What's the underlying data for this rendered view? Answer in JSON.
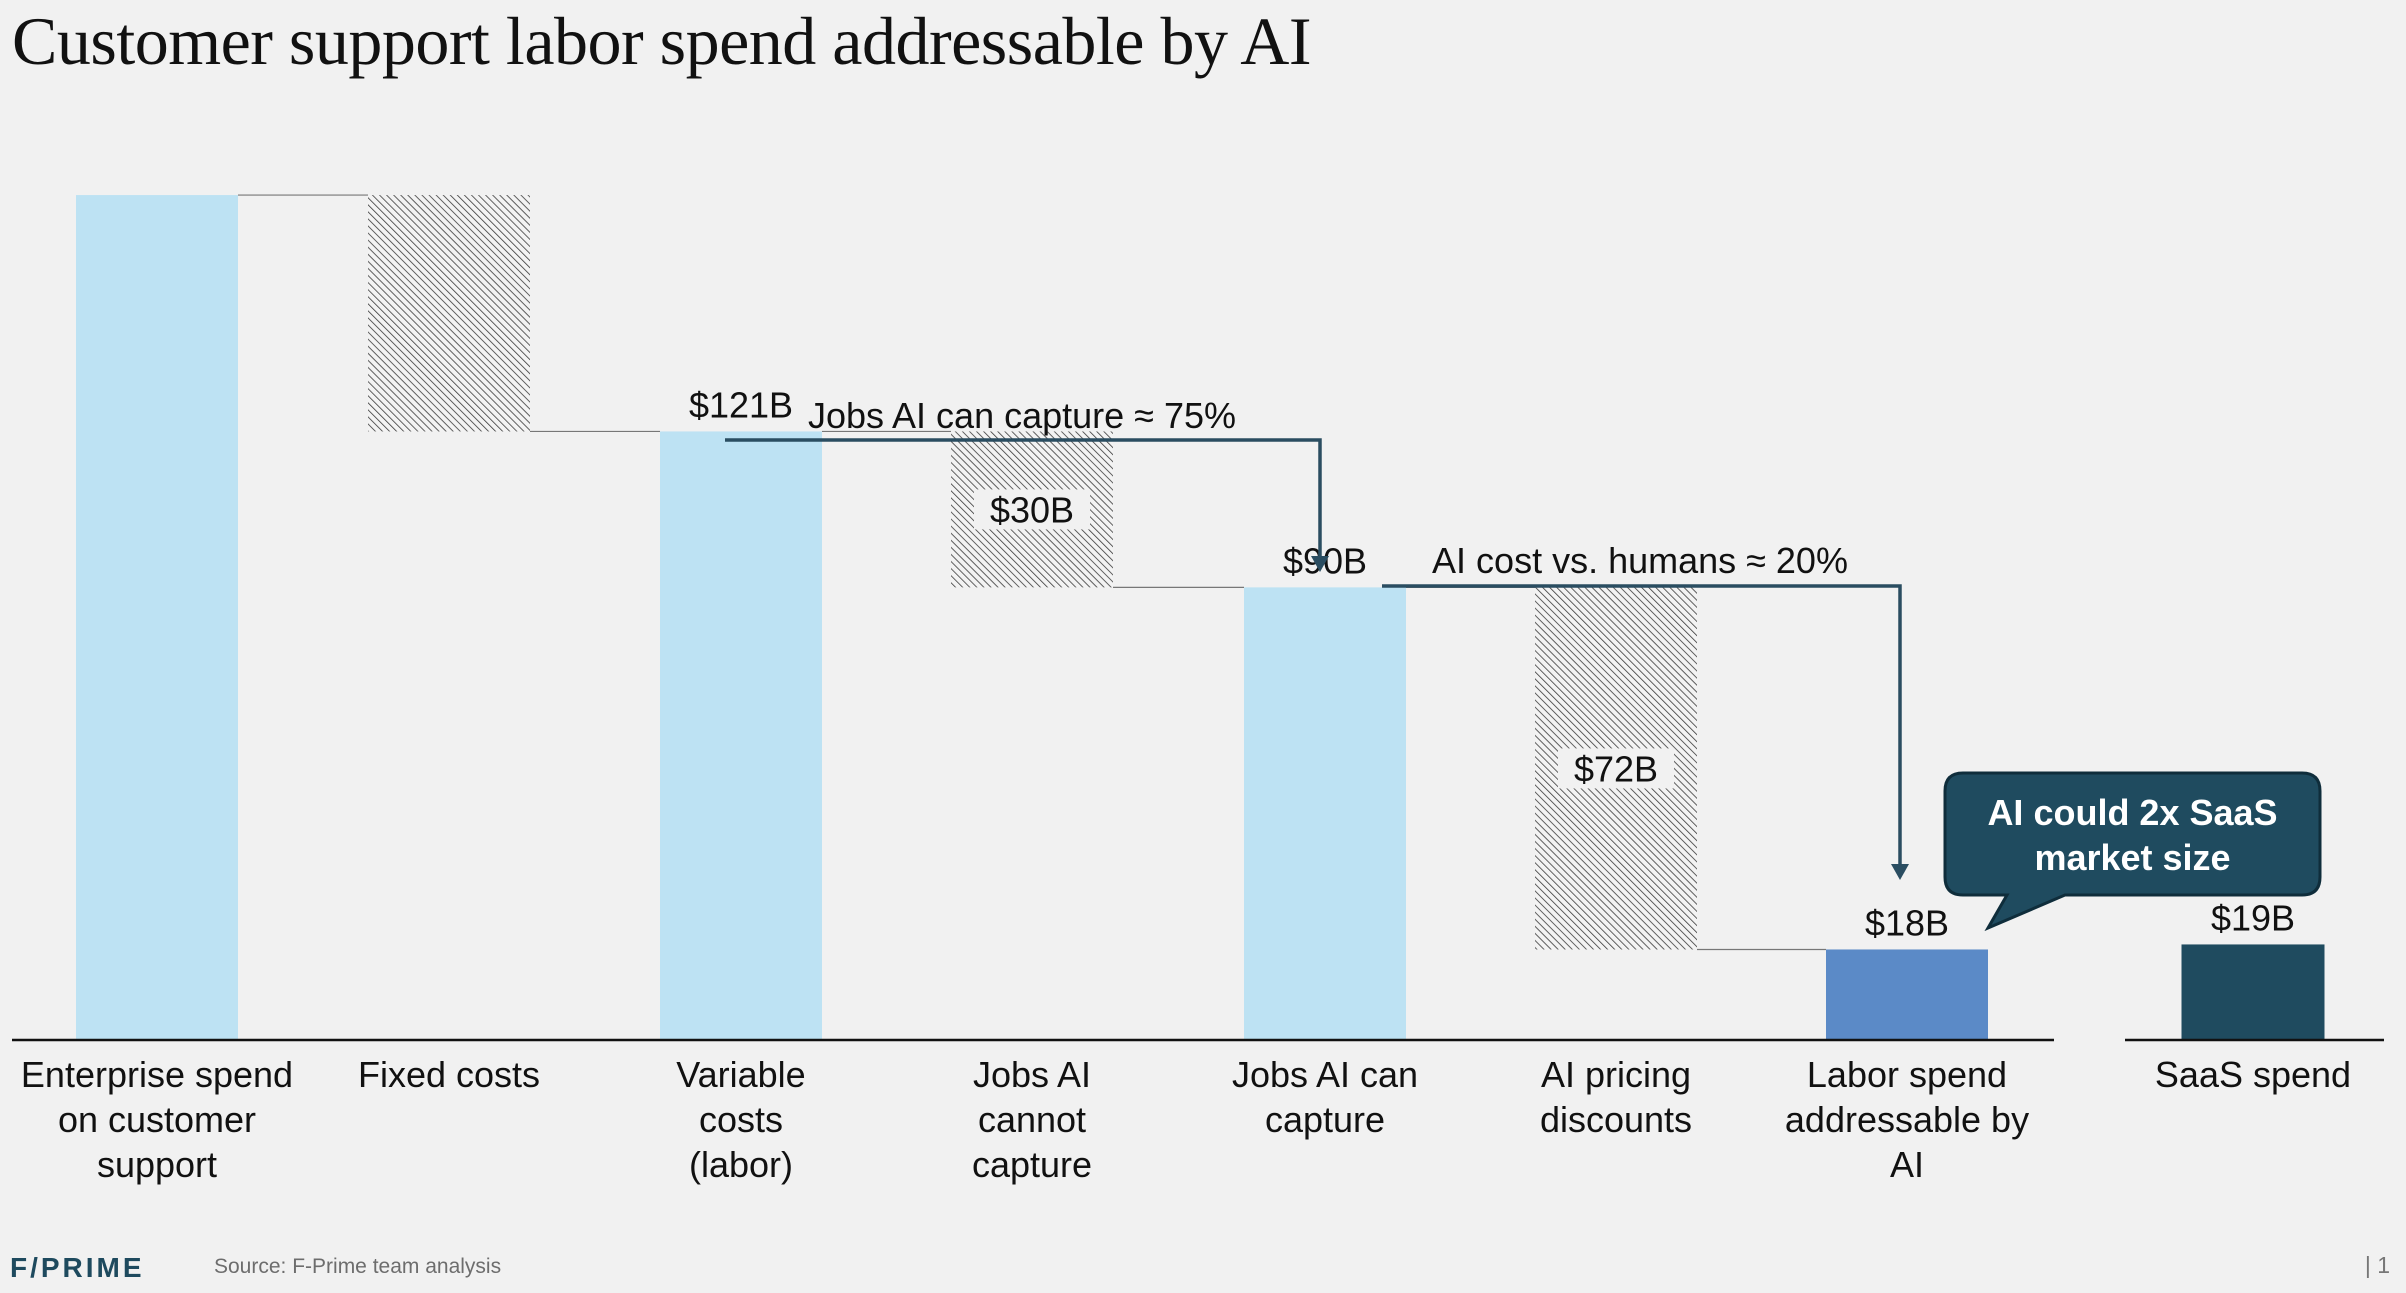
{
  "title": "Customer support labor spend addressable by AI",
  "chart_data": {
    "type": "waterfall",
    "title": "Customer support labor spend addressable by AI",
    "unit": "$B",
    "ylim": [
      0,
      170
    ],
    "categories": [
      "Enterprise spend on customer support",
      "Fixed costs",
      "Variable costs (labor)",
      "Jobs AI cannot capture",
      "Jobs AI can capture",
      "AI pricing discounts",
      "Labor spend addressable by AI",
      "SaaS spend"
    ],
    "category_lines": [
      [
        "Enterprise spend",
        "on customer",
        "support"
      ],
      [
        "Fixed costs"
      ],
      [
        "Variable",
        "costs",
        "(labor)"
      ],
      [
        "Jobs AI",
        "cannot",
        "capture"
      ],
      [
        "Jobs AI can",
        "capture"
      ],
      [
        "AI pricing",
        "discounts"
      ],
      [
        "Labor spend",
        "addressable by",
        "AI"
      ],
      [
        "SaaS spend"
      ]
    ],
    "bars": [
      {
        "kind": "total",
        "start": 0,
        "end": 168,
        "label": ""
      },
      {
        "kind": "decrease",
        "start": 168,
        "end": 121,
        "label": ""
      },
      {
        "kind": "total",
        "start": 0,
        "end": 121,
        "label": "$121B"
      },
      {
        "kind": "decrease",
        "start": 121,
        "end": 90,
        "label": "$30B"
      },
      {
        "kind": "total",
        "start": 0,
        "end": 90,
        "label": "$90B"
      },
      {
        "kind": "decrease",
        "start": 90,
        "end": 18,
        "label": "$72B"
      },
      {
        "kind": "result",
        "start": 0,
        "end": 18,
        "label": "$18B"
      },
      {
        "kind": "comparison",
        "start": 0,
        "end": 19,
        "label": "$19B"
      }
    ],
    "annotations": [
      {
        "text": "Jobs AI can capture ≈ 75%",
        "from": 2,
        "to": 4
      },
      {
        "text": "AI cost vs. humans ≈ 20%",
        "from": 4,
        "to": 6
      }
    ],
    "callout": [
      "AI could 2x SaaS",
      "market size"
    ]
  },
  "colors": {
    "light_bar": "#bde2f3",
    "result_bar": "#5b8ac7",
    "saas_bar": "#1f4b5f",
    "callout_bg": "#1f4b5f",
    "arrow": "#2a4d61",
    "axis": "#111111"
  },
  "footer": {
    "logo": "F/PRIME",
    "source": "Source: F-Prime team analysis",
    "page": "| 1"
  }
}
